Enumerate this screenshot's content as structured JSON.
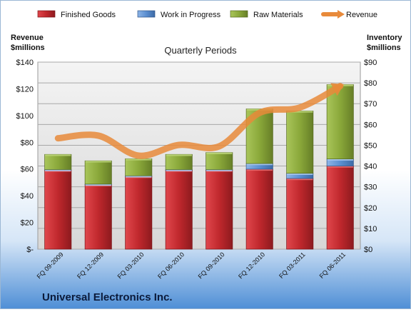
{
  "chart_data": {
    "type": "bar",
    "title": "Quarterly Periods",
    "company": "Universal Electronics Inc.",
    "ylabel_left": [
      "Revenue",
      "$millions"
    ],
    "ylabel_right": [
      "Inventory",
      "$millions"
    ],
    "categories": [
      "FQ 09-2009",
      "FQ 12-2009",
      "FQ 03-2010",
      "FQ 06-2010",
      "FQ 09-2010",
      "FQ 12-2010",
      "FQ 03-2011",
      "FQ 06-2011"
    ],
    "left_axis": {
      "min": 0,
      "max": 140,
      "ticks": [
        "$-",
        "$20",
        "$40",
        "$60",
        "$80",
        "$100",
        "$120",
        "$140"
      ]
    },
    "right_axis": {
      "min": 0,
      "max": 90,
      "ticks": [
        "$0",
        "$10",
        "$20",
        "$30",
        "$40",
        "$50",
        "$60",
        "$70",
        "$80",
        "$90"
      ]
    },
    "stacked_axis": "right",
    "series": [
      {
        "name": "Finished Goods",
        "kind": "bar",
        "color": "#c0282d",
        "values": [
          38,
          31,
          35,
          38,
          38,
          38.5,
          34,
          40
        ]
      },
      {
        "name": "Work in Progress",
        "kind": "bar",
        "color": "#5b8fd1",
        "values": [
          0.3,
          0.3,
          0.3,
          0.3,
          0.3,
          2.7,
          2.5,
          3.4
        ]
      },
      {
        "name": "Raw Materials",
        "kind": "bar",
        "color": "#8aa83a",
        "values": [
          7.3,
          11.2,
          8.2,
          7.3,
          8.2,
          26.3,
          30,
          35.8
        ]
      },
      {
        "name": "Revenue",
        "kind": "line",
        "axis": "left",
        "color": "#e88a3a",
        "values": [
          83,
          85,
          70,
          78,
          77,
          102,
          106,
          122
        ]
      }
    ],
    "grid": true,
    "legend": "top"
  }
}
